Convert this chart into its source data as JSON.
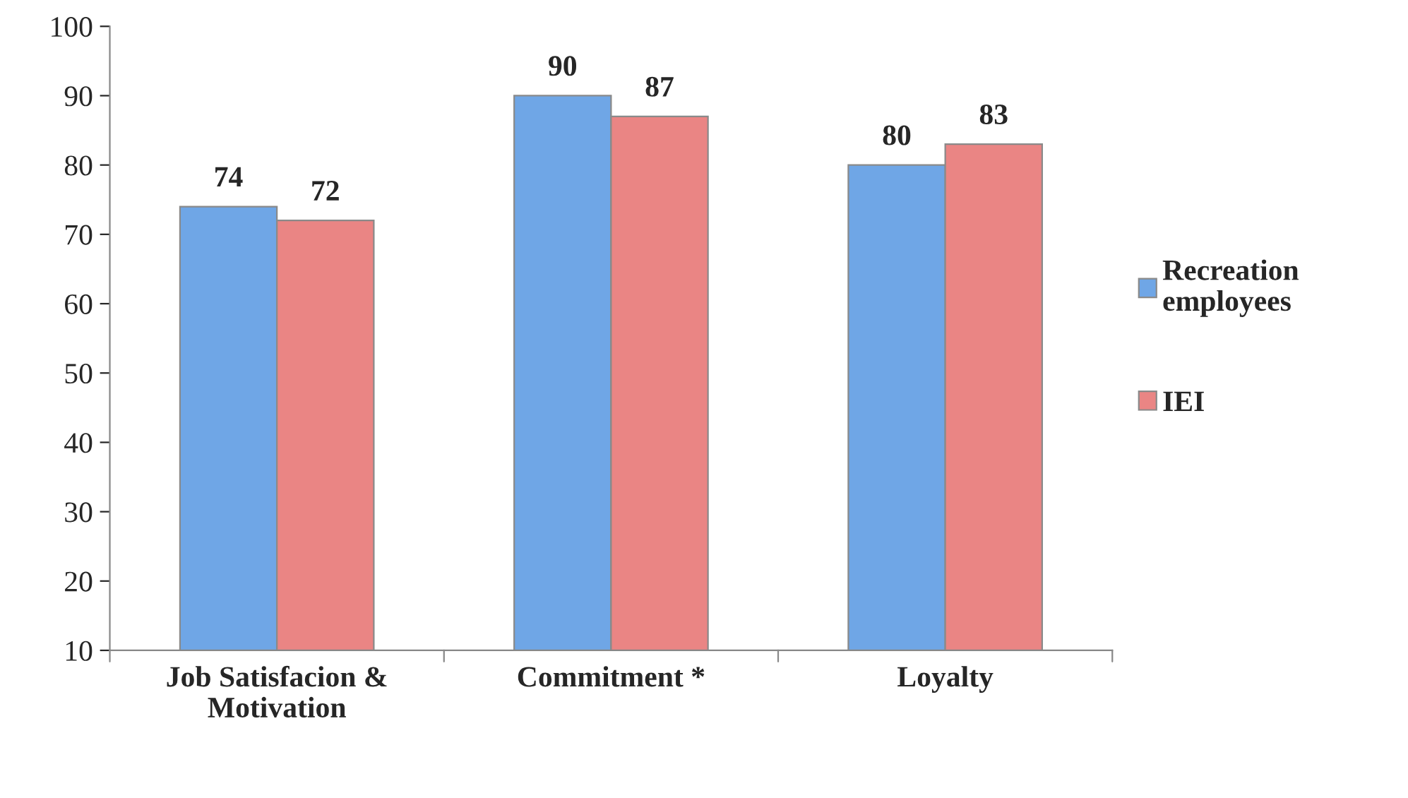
{
  "chart_data": {
    "type": "bar",
    "categories": [
      "Job Satisfacion & Motivation",
      "Commitment *",
      "Loyalty"
    ],
    "series": [
      {
        "name": "Recreation employees",
        "color": "#6fa6e6",
        "values": [
          74,
          90,
          80
        ]
      },
      {
        "name": "IEI",
        "color": "#ea8584",
        "values": [
          72,
          87,
          83
        ]
      }
    ],
    "ylim": [
      10,
      100
    ],
    "yticks": [
      10,
      20,
      30,
      40,
      50,
      60,
      70,
      80,
      90,
      100
    ],
    "grid": false,
    "legend": "right",
    "data_labels": true
  }
}
